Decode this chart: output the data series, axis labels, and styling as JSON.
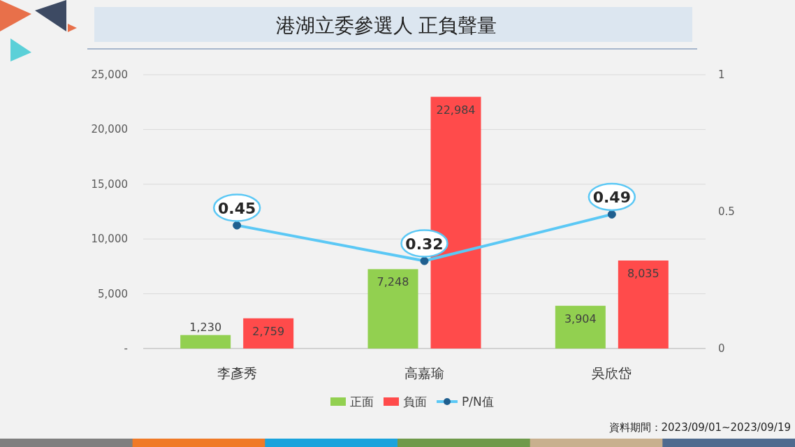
{
  "chart_data": {
    "type": "bar",
    "title": "港湖立委參選人 正負聲量",
    "categories": [
      "李彥秀",
      "高嘉瑜",
      "吳欣岱"
    ],
    "series": [
      {
        "name": "正面",
        "color": "#92d050",
        "values": [
          1230,
          7248,
          3904
        ],
        "value_labels": [
          "1,230",
          "7,248",
          "3,904"
        ]
      },
      {
        "name": "負面",
        "color": "#ff4b4b",
        "values": [
          2759,
          22984,
          8035
        ],
        "value_labels": [
          "2,759",
          "22,984",
          "8,035"
        ]
      },
      {
        "name": "P/N值",
        "type": "line",
        "axis": "y2",
        "color": "#5bc8f5",
        "marker": "circle",
        "values": [
          0.45,
          0.32,
          0.49
        ],
        "value_labels": [
          "0.45",
          "0.32",
          "0.49"
        ]
      }
    ],
    "ylim": [
      0,
      25000
    ],
    "yticks": [
      {
        "value": 0,
        "label": "-"
      },
      {
        "value": 5000,
        "label": "5,000"
      },
      {
        "value": 10000,
        "label": "10,000"
      },
      {
        "value": 15000,
        "label": "15,000"
      },
      {
        "value": 20000,
        "label": "20,000"
      },
      {
        "value": 25000,
        "label": "25,000"
      }
    ],
    "y2lim": [
      0,
      1
    ],
    "y2ticks": [
      0,
      0.5,
      1
    ],
    "grid": "y",
    "legend": "bottom",
    "annotations": [
      "資料期間：2023/09/01~2023/09/19"
    ]
  }
}
